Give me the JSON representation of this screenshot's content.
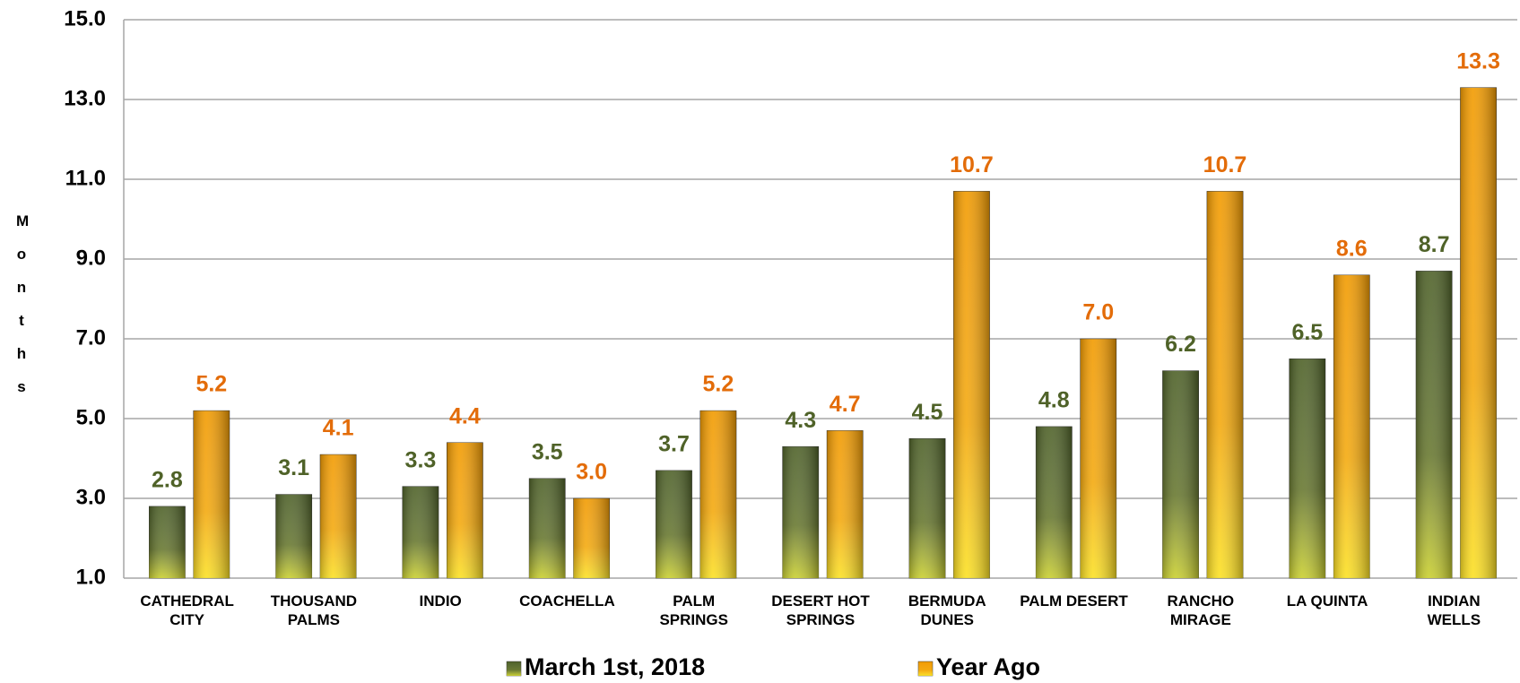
{
  "chart_data": {
    "type": "bar",
    "y_label": "Months",
    "categories": [
      "CATHEDRAL CITY",
      "THOUSAND PALMS",
      "INDIO",
      "COACHELLA",
      "PALM SPRINGS",
      "DESERT HOT SPRINGS",
      "BERMUDA DUNES",
      "PALM DESERT",
      "RANCHO MIRAGE",
      "LA QUINTA",
      "INDIAN WELLS"
    ],
    "series": [
      {
        "name": "March 1st, 2018",
        "color": "#4f6228",
        "label_color": "#4f6228",
        "values": [
          2.8,
          3.1,
          3.3,
          3.5,
          3.7,
          4.3,
          4.5,
          4.8,
          6.2,
          6.5,
          8.7
        ],
        "value_labels": [
          "2.8",
          "3.1",
          "3.3",
          "3.5",
          "3.7",
          "4.3",
          "4.5",
          "4.8",
          "6.2",
          "6.5",
          "8.7"
        ]
      },
      {
        "name": "Year Ago",
        "color": "#f29b00",
        "label_color": "#e36c09",
        "values": [
          5.2,
          4.1,
          4.4,
          3.0,
          5.2,
          4.7,
          10.7,
          7.0,
          10.7,
          8.6,
          13.3
        ],
        "value_labels": [
          "5.2",
          "4.1",
          "4.4",
          "3.0",
          "5.2",
          "4.7",
          "10.7",
          "7.0",
          "10.7",
          "8.6",
          "13.3"
        ]
      }
    ],
    "ylim": [
      1,
      15
    ],
    "yticks": [
      {
        "value": 1,
        "label": "1.0"
      },
      {
        "value": 3,
        "label": "3.0"
      },
      {
        "value": 5,
        "label": "5.0"
      },
      {
        "value": 7,
        "label": "7.0"
      },
      {
        "value": 9,
        "label": "9.0"
      },
      {
        "value": 11,
        "label": "11.0"
      },
      {
        "value": 13,
        "label": "13.0"
      },
      {
        "value": 15,
        "label": "15.0"
      }
    ],
    "grid": true,
    "legend": "bottom"
  }
}
